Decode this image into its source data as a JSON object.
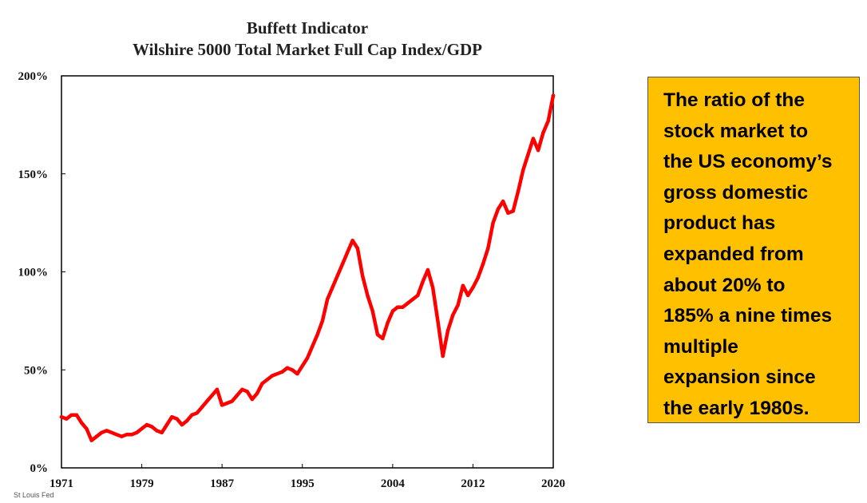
{
  "chart_data": {
    "type": "line",
    "title": "Buffett Indicator",
    "subtitle": "Wilshire 5000 Total Market Full Cap Index/GDP",
    "source": "St Louis Fed",
    "xlabel": "",
    "ylabel": "",
    "xlim": [
      1971,
      2020
    ],
    "ylim": [
      0,
      200
    ],
    "x_ticks": [
      {
        "value": 1971,
        "label": "1971"
      },
      {
        "value": 1979,
        "label": "1979"
      },
      {
        "value": 1987,
        "label": "1987"
      },
      {
        "value": 1995,
        "label": "1995"
      },
      {
        "value": 2004,
        "label": "2004"
      },
      {
        "value": 2012,
        "label": "2012"
      },
      {
        "value": 2020,
        "label": "2020"
      }
    ],
    "y_ticks": [
      {
        "value": 0,
        "label": "0%"
      },
      {
        "value": 50,
        "label": "50%"
      },
      {
        "value": 100,
        "label": "100%"
      },
      {
        "value": 150,
        "label": "150%"
      },
      {
        "value": 200,
        "label": "200%"
      }
    ],
    "grid": false,
    "legend": "none",
    "series": [
      {
        "color": "#FF0000",
        "x": [
          1971.0,
          1971.5,
          1972.0,
          1972.5,
          1973.0,
          1973.5,
          1974.0,
          1974.5,
          1975.0,
          1975.5,
          1976.0,
          1976.5,
          1977.0,
          1977.5,
          1978.0,
          1978.5,
          1979.0,
          1979.5,
          1980.0,
          1980.5,
          1981.0,
          1981.5,
          1982.0,
          1982.5,
          1983.0,
          1983.5,
          1984.0,
          1984.5,
          1985.0,
          1985.5,
          1986.0,
          1986.5,
          1987.0,
          1987.5,
          1988.0,
          1988.5,
          1989.0,
          1989.5,
          1990.0,
          1990.5,
          1991.0,
          1991.5,
          1992.0,
          1992.5,
          1993.0,
          1993.5,
          1994.0,
          1994.5,
          1995.0,
          1995.5,
          1996.0,
          1996.5,
          1997.0,
          1997.5,
          1998.0,
          1998.5,
          1999.0,
          1999.5,
          2000.0,
          2000.5,
          2001.0,
          2001.5,
          2002.0,
          2002.5,
          2003.0,
          2003.5,
          2004.0,
          2004.5,
          2005.0,
          2005.5,
          2006.0,
          2006.5,
          2007.0,
          2007.5,
          2008.0,
          2008.5,
          2009.0,
          2009.5,
          2010.0,
          2010.5,
          2011.0,
          2011.5,
          2012.0,
          2012.5,
          2013.0,
          2013.5,
          2014.0,
          2014.5,
          2015.0,
          2015.5,
          2016.0,
          2016.5,
          2017.0,
          2017.5,
          2018.0,
          2018.5,
          2019.0,
          2019.5,
          2020.0
        ],
        "y": [
          26,
          25,
          27,
          27,
          23,
          20,
          14,
          16,
          18,
          19,
          18,
          17,
          16,
          17,
          17,
          18,
          20,
          22,
          21,
          19,
          18,
          22,
          26,
          25,
          22,
          24,
          27,
          28,
          31,
          34,
          37,
          40,
          32,
          33,
          34,
          37,
          40,
          39,
          35,
          38,
          43,
          45,
          47,
          48,
          49,
          51,
          50,
          48,
          52,
          56,
          62,
          68,
          75,
          86,
          92,
          98,
          104,
          110,
          116,
          112,
          98,
          88,
          80,
          68,
          66,
          74,
          80,
          82,
          82,
          84,
          86,
          88,
          95,
          101,
          92,
          75,
          57,
          70,
          78,
          83,
          93,
          88,
          92,
          97,
          104,
          112,
          125,
          132,
          136,
          130,
          131,
          141,
          152,
          160,
          168,
          162,
          171,
          177,
          190
        ]
      }
    ]
  },
  "callout": {
    "lines": [
      "The ratio of the",
      "stock market to",
      "the US economy’s",
      "gross domestic",
      "product has",
      "expanded from",
      "about 20% to",
      "185% a nine times",
      "multiple",
      "expansion since",
      "the early 1980s."
    ],
    "background": "#FFC000"
  }
}
